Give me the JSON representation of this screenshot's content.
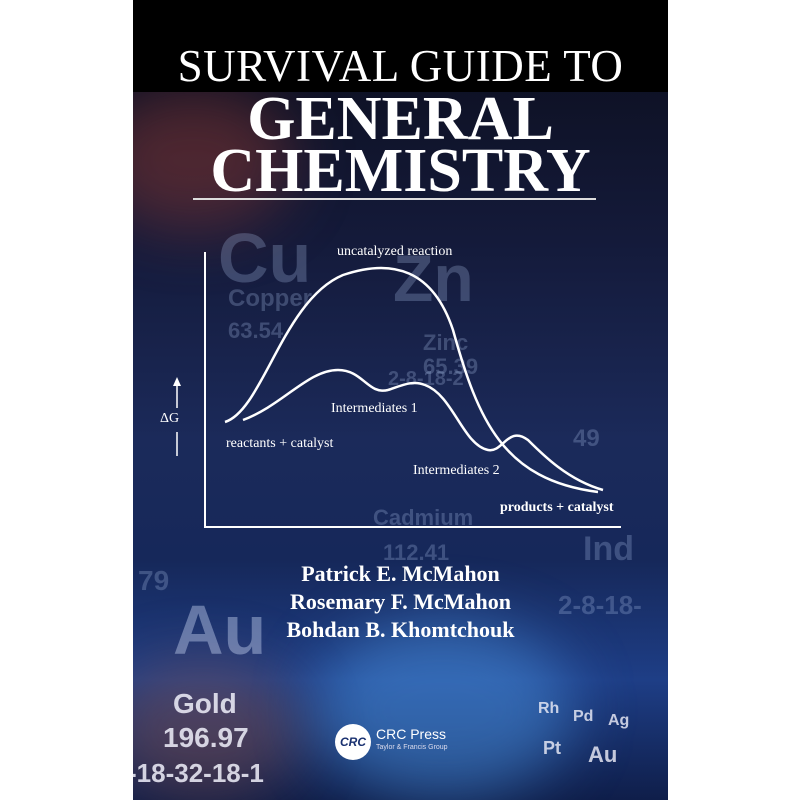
{
  "title": {
    "line1": "SURVIVAL GUIDE TO",
    "line2": "GENERAL",
    "line3": "CHEMISTRY"
  },
  "diagram": {
    "y_axis_label": "ΔG",
    "labels": {
      "uncatalyzed": "uncatalyzed reaction",
      "intermediates1": "Intermediates 1",
      "intermediates2": "Intermediates 2",
      "reactants": "reactants + catalyst",
      "products": "products + catalyst"
    }
  },
  "authors": [
    "Patrick E. McMahon",
    "Rosemary F. McMahon",
    "Bohdan B. Khomtchouk"
  ],
  "publisher": {
    "logo": "CRC",
    "name": "CRC Press",
    "group": "Taylor & Francis Group"
  },
  "background_tiles": {
    "cu": "Cu",
    "copper": "Copper",
    "cu_mass": "63.54",
    "zn": "Zn",
    "zinc": "Zinc",
    "zn_mass": "65.39",
    "zn_shell": "2-8-18-2",
    "cadmium": "Cadmium",
    "cd_mass": "112.41",
    "in": "Ind",
    "in_shell": "2-8-18-",
    "au": "Au",
    "gold": "Gold",
    "au_mass": "196.97",
    "au_shell": "-18-32-18-1",
    "n79": "79",
    "n49": "49",
    "rh": "Rh",
    "pd": "Pd",
    "ag": "Ag",
    "pt": "Pt",
    "au2": "Au"
  },
  "colors": {
    "background": "#16285a",
    "top_band": "#000000",
    "text": "#ffffff"
  }
}
